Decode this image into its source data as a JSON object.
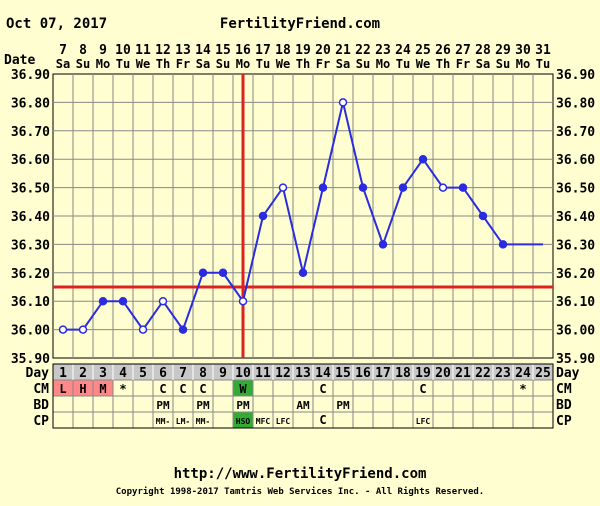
{
  "header": {
    "date": "Oct 07, 2017",
    "site": "FertilityFriend.com"
  },
  "footer": {
    "url": "http://www.FertilityFriend.com",
    "copyright": "Copyright 1998-2017 Tamtris Web Services Inc. - All Rights Reserved."
  },
  "labels": {
    "date": "Date",
    "day": "Day",
    "cm": "CM",
    "bd": "BD",
    "cp": "CP"
  },
  "colors": {
    "background": "#fefed0",
    "line": "#2b2be0",
    "coverline": "#dd2222",
    "grid": "#888888",
    "menses": "#ff8888",
    "fertile": "#33aa33",
    "dayband": "#c8c8c8"
  },
  "chart_data": {
    "type": "line",
    "title": "",
    "ylim": [
      35.9,
      36.9
    ],
    "yticks": [
      "35.90",
      "36.00",
      "36.10",
      "36.20",
      "36.30",
      "36.40",
      "36.50",
      "36.60",
      "36.70",
      "36.80",
      "36.90"
    ],
    "dates": [
      "7",
      "8",
      "9",
      "10",
      "11",
      "12",
      "13",
      "14",
      "15",
      "16",
      "17",
      "18",
      "19",
      "20",
      "21",
      "22",
      "23",
      "24",
      "25",
      "26",
      "27",
      "28",
      "29",
      "30",
      "31"
    ],
    "weekdays": [
      "Sa",
      "Su",
      "Mo",
      "Tu",
      "We",
      "Th",
      "Fr",
      "Sa",
      "Su",
      "Mo",
      "Tu",
      "We",
      "Th",
      "Fr",
      "Sa",
      "Su",
      "Mo",
      "Tu",
      "We",
      "Th",
      "Fr",
      "Sa",
      "Su",
      "Mo",
      "Tu"
    ],
    "cycle_days": [
      "1",
      "2",
      "3",
      "4",
      "5",
      "6",
      "7",
      "8",
      "9",
      "10",
      "11",
      "12",
      "13",
      "14",
      "15",
      "16",
      "17",
      "18",
      "19",
      "20",
      "21",
      "22",
      "23",
      "24",
      "25"
    ],
    "series": [
      {
        "values": [
          36.0,
          36.0,
          36.1,
          36.1,
          36.0,
          36.1,
          36.0,
          36.2,
          36.2,
          36.1,
          36.4,
          36.5,
          36.2,
          36.5,
          36.8,
          36.5,
          36.3,
          36.5,
          36.6,
          36.5,
          36.5,
          36.4,
          36.3,
          36.3,
          36.3
        ],
        "open_markers": [
          1,
          2,
          5,
          6,
          10,
          12,
          15,
          20
        ],
        "markers_drawn": [
          1,
          2,
          3,
          4,
          5,
          6,
          7,
          8,
          9,
          10,
          11,
          12,
          13,
          14,
          15,
          16,
          17,
          18,
          19,
          20,
          21,
          22,
          23
        ]
      }
    ],
    "coverline": 36.15,
    "ovulation_day": 10,
    "rows": {
      "cm": [
        "L",
        "H",
        "M",
        "*",
        "",
        "C",
        "C",
        "C",
        "",
        "W",
        "",
        "",
        "",
        "C",
        "",
        "",
        "",
        "",
        "C",
        "",
        "",
        "",
        "",
        "*",
        ""
      ],
      "bd": [
        "",
        "",
        "",
        "",
        "",
        "PM",
        "",
        "PM",
        "",
        "PM",
        "",
        "",
        "AM",
        "",
        "PM",
        "",
        "",
        "",
        "",
        "",
        "",
        "",
        "",
        "",
        ""
      ],
      "cp": [
        "",
        "",
        "",
        "",
        "",
        "MM-",
        "LM-",
        "MM-",
        "",
        "HSO",
        "MFC",
        "LFC",
        "",
        "C",
        "",
        "",
        "",
        "",
        "LFC",
        "",
        "",
        "",
        "",
        "",
        ""
      ]
    },
    "highlights": {
      "menses_days": [
        1,
        2,
        3
      ],
      "fertile_days": [
        10
      ]
    }
  }
}
